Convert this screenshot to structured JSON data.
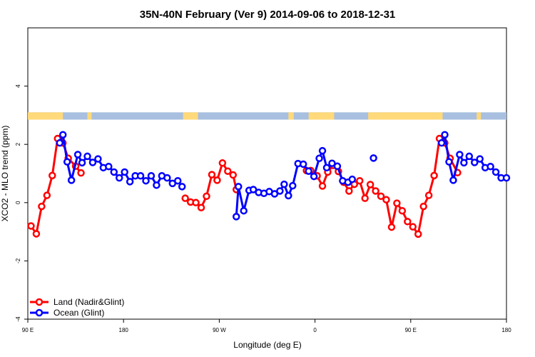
{
  "chart_data": {
    "type": "line",
    "title": "35N-40N February (Ver 9)   2014-09-06 to 2018-12-31",
    "xlabel": "Longitude (deg E)",
    "ylabel": "XCO2 - MLO trend (ppm)",
    "xlim": [
      90,
      540
    ],
    "ylim": [
      -4,
      6
    ],
    "x_ticks": [
      {
        "value": 90,
        "label": "90 E"
      },
      {
        "value": 180,
        "label": "180"
      },
      {
        "value": 270,
        "label": "90 W"
      },
      {
        "value": 360,
        "label": "0"
      },
      {
        "value": 450,
        "label": "90 E"
      },
      {
        "value": 540,
        "label": "180"
      }
    ],
    "y_ticks": [
      {
        "value": -4,
        "label": "-4"
      },
      {
        "value": -2,
        "label": "-2"
      },
      {
        "value": 0,
        "label": "0"
      },
      {
        "value": 2,
        "label": "2"
      },
      {
        "value": 4,
        "label": "4"
      }
    ],
    "grid": false,
    "legend_position": "bottom-left",
    "land_ocean_band": {
      "y_range": [
        2.85,
        3.1
      ],
      "land_color": "#FFD97A",
      "ocean_color": "#A8BFE0",
      "land_segments": [
        [
          90,
          123
        ],
        [
          146,
          150
        ],
        [
          236,
          250
        ],
        [
          335,
          340
        ],
        [
          354,
          378
        ],
        [
          410,
          480
        ],
        [
          512,
          516
        ]
      ]
    },
    "series": [
      {
        "name": "Land (Nadir&Glint)",
        "color": "#FF0000",
        "segments": [
          [
            [
              93,
              -0.8
            ],
            [
              98,
              -1.07
            ],
            [
              103,
              -0.13
            ],
            [
              108,
              0.25
            ],
            [
              113,
              0.93
            ],
            [
              118,
              2.2
            ],
            [
              123,
              2.05
            ],
            [
              128,
              1.52
            ],
            [
              135,
              1.25
            ],
            [
              140,
              1.02
            ]
          ],
          [
            [
              238,
              0.15
            ],
            [
              243,
              0.02
            ],
            [
              248,
              0.0
            ],
            [
              253,
              -0.17
            ],
            [
              258,
              0.22
            ],
            [
              263,
              0.96
            ],
            [
              268,
              0.77
            ],
            [
              273,
              1.36
            ],
            [
              278,
              1.08
            ],
            [
              283,
              0.95
            ],
            [
              286,
              0.45
            ]
          ],
          [
            [
              352,
              1.1
            ],
            [
              356,
              1.1
            ],
            [
              362,
              0.92
            ],
            [
              367,
              0.57
            ],
            [
              372,
              1.05
            ],
            [
              377,
              1.28
            ],
            [
              382,
              1.07
            ],
            [
              387,
              0.7
            ],
            [
              392,
              0.4
            ],
            [
              397,
              0.63
            ],
            [
              402,
              0.75
            ],
            [
              407,
              0.15
            ],
            [
              412,
              0.62
            ],
            [
              417,
              0.4
            ],
            [
              422,
              0.22
            ],
            [
              427,
              0.1
            ],
            [
              432,
              -0.84
            ],
            [
              437,
              -0.02
            ],
            [
              442,
              -0.28
            ],
            [
              447,
              -0.65
            ],
            [
              452,
              -0.83
            ],
            [
              457,
              -1.08
            ],
            [
              462,
              -0.13
            ],
            [
              467,
              0.25
            ],
            [
              472,
              0.93
            ],
            [
              477,
              2.2
            ],
            [
              482,
              2.05
            ],
            [
              487,
              1.52
            ],
            [
              494,
              1.03
            ]
          ]
        ]
      },
      {
        "name": "Ocean (Glint)",
        "color": "#0000FF",
        "segments": [
          [
            [
              120,
              2.05
            ],
            [
              123,
              2.33
            ],
            [
              127,
              1.4
            ],
            [
              131,
              0.77
            ],
            [
              137,
              1.65
            ],
            [
              141,
              1.37
            ],
            [
              146,
              1.59
            ],
            [
              151,
              1.38
            ],
            [
              156,
              1.5
            ],
            [
              161,
              1.2
            ],
            [
              166,
              1.24
            ],
            [
              171,
              1.05
            ],
            [
              176,
              0.85
            ],
            [
              181,
              1.05
            ],
            [
              186,
              0.72
            ],
            [
              191,
              0.92
            ],
            [
              196,
              0.92
            ],
            [
              201,
              0.75
            ],
            [
              206,
              0.92
            ],
            [
              211,
              0.6
            ],
            [
              216,
              0.92
            ],
            [
              221,
              0.85
            ],
            [
              226,
              0.66
            ],
            [
              231,
              0.75
            ],
            [
              235,
              0.55
            ]
          ],
          [
            [
              286,
              -0.48
            ],
            [
              288,
              0.55
            ],
            [
              293,
              -0.28
            ],
            [
              298,
              0.42
            ],
            [
              302,
              0.45
            ],
            [
              307,
              0.35
            ],
            [
              312,
              0.32
            ],
            [
              317,
              0.38
            ],
            [
              322,
              0.3
            ],
            [
              327,
              0.4
            ],
            [
              331,
              0.63
            ],
            [
              335,
              0.24
            ],
            [
              339,
              0.58
            ],
            [
              344,
              1.34
            ],
            [
              349,
              1.32
            ],
            [
              354,
              1.08
            ],
            [
              359,
              0.9
            ],
            [
              364,
              1.52
            ],
            [
              367,
              1.78
            ],
            [
              371,
              1.2
            ],
            [
              376,
              1.35
            ],
            [
              381,
              1.25
            ],
            [
              386,
              0.75
            ],
            [
              391,
              0.7
            ],
            [
              395,
              0.8
            ]
          ],
          [
            [
              415,
              1.53
            ]
          ],
          [
            [
              479,
              2.05
            ],
            [
              482,
              2.33
            ],
            [
              486,
              1.4
            ],
            [
              490,
              0.77
            ],
            [
              496,
              1.65
            ],
            [
              500,
              1.37
            ],
            [
              505,
              1.59
            ],
            [
              510,
              1.38
            ],
            [
              515,
              1.5
            ],
            [
              520,
              1.2
            ],
            [
              525,
              1.24
            ],
            [
              530,
              1.05
            ],
            [
              535,
              0.85
            ],
            [
              540,
              0.85
            ]
          ]
        ]
      }
    ]
  }
}
